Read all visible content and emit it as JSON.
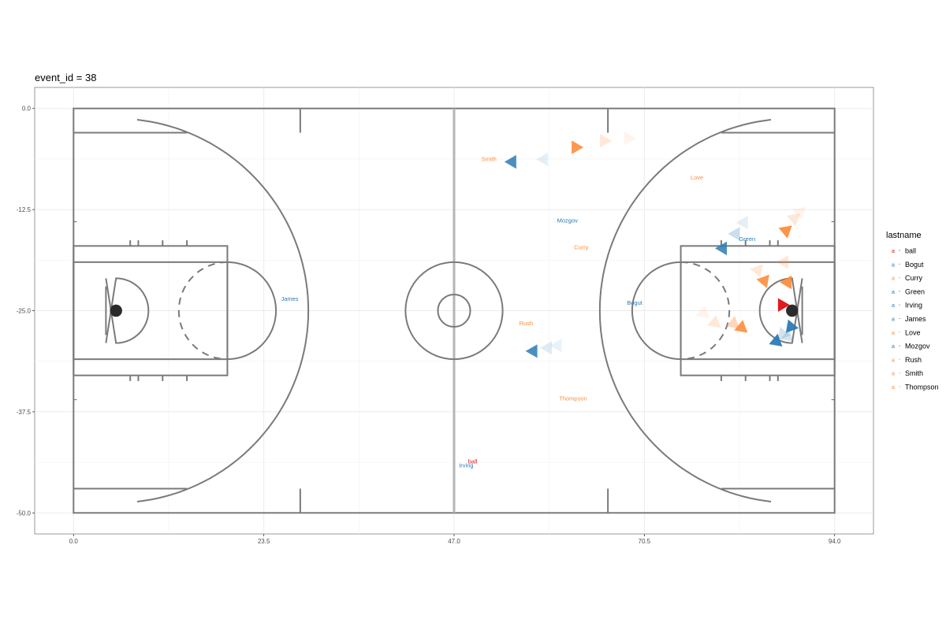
{
  "chart_data": {
    "type": "scatter",
    "title": "event_id = 38",
    "xlabel": "",
    "ylabel": "",
    "xlim": [
      -4.8,
      98.8
    ],
    "ylim": [
      -52.6,
      2.6
    ],
    "x_ticks": [
      0.0,
      23.5,
      47.0,
      70.5,
      94.0
    ],
    "x_tick_labels": [
      "0.0",
      "23.5",
      "47.0",
      "70.5",
      "94.0"
    ],
    "y_ticks": [
      0.0,
      -12.5,
      -25.0,
      -37.5,
      -50.0
    ],
    "y_tick_labels": [
      "0.0",
      "-12.5",
      "-25.0",
      "-37.5",
      "-50.0"
    ],
    "grid": true,
    "legend": {
      "title": "lastname",
      "placement": "right",
      "key_glyph": "a"
    },
    "series": [
      {
        "name": "ball",
        "color": "#e31a1c",
        "label_pos": [
          49.3,
          -43.6
        ],
        "markers": [
          {
            "x": 87.5,
            "y": -24.3,
            "a": 1.0,
            "r": 0
          }
        ]
      },
      {
        "name": "Bogut",
        "color": "#2c7bb6",
        "label_pos": [
          69.3,
          -24.0
        ],
        "markers": []
      },
      {
        "name": "Curry",
        "color": "#fd8d3c",
        "label_pos": [
          62.7,
          -17.1
        ],
        "markers": [
          {
            "x": 88.2,
            "y": -21.5,
            "a": 0.95,
            "r": 60
          },
          {
            "x": 87.8,
            "y": -19.0,
            "a": 0.2,
            "r": 60
          }
        ]
      },
      {
        "name": "Green",
        "color": "#2c7bb6",
        "label_pos": [
          83.2,
          -16.1
        ],
        "markers": [
          {
            "x": 80.2,
            "y": -17.3,
            "a": 0.85,
            "r": 180
          },
          {
            "x": 81.8,
            "y": -15.5,
            "a": 0.25,
            "r": 180
          },
          {
            "x": 82.8,
            "y": -14.1,
            "a": 0.12,
            "r": 180
          }
        ]
      },
      {
        "name": "Irving",
        "color": "#2c7bb6",
        "label_pos": [
          48.5,
          -44.1
        ],
        "markers": [
          {
            "x": 86.8,
            "y": -28.8,
            "a": 0.95,
            "r": 200
          },
          {
            "x": 88.2,
            "y": -28.2,
            "a": 0.2,
            "r": 200
          }
        ]
      },
      {
        "name": "James",
        "color": "#2c7bb6",
        "label_pos": [
          26.7,
          -23.5
        ],
        "markers": []
      },
      {
        "name": "Love",
        "color": "#fd8d3c",
        "label_pos": [
          77.0,
          -8.5
        ],
        "markers": [
          {
            "x": 85.3,
            "y": -21.3,
            "a": 0.9,
            "r": 170
          },
          {
            "x": 84.5,
            "y": -20.0,
            "a": 0.2,
            "r": 170
          }
        ]
      },
      {
        "name": "Mozgov",
        "color": "#2c7bb6",
        "label_pos": [
          61.0,
          -13.8
        ],
        "markers": [
          {
            "x": 88.6,
            "y": -27.0,
            "a": 0.95,
            "r": 230
          },
          {
            "x": 87.6,
            "y": -27.9,
            "a": 0.2,
            "r": 230
          }
        ]
      },
      {
        "name": "Rush",
        "color": "#fd8d3c",
        "label_pos": [
          55.9,
          -26.5
        ],
        "markers": [
          {
            "x": 82.5,
            "y": -27.1,
            "a": 0.9,
            "r": 200
          },
          {
            "x": 81.5,
            "y": -26.6,
            "a": 0.35,
            "r": 200
          },
          {
            "x": 79.2,
            "y": -26.5,
            "a": 0.2,
            "r": 200
          },
          {
            "x": 77.8,
            "y": -25.3,
            "a": 0.1,
            "r": 200
          }
        ]
      },
      {
        "name": "Smith",
        "color": "#fd8d3c",
        "label_pos": [
          51.3,
          -6.2
        ],
        "markers": [
          {
            "x": 62.0,
            "y": -4.8,
            "a": 0.9,
            "r": 0
          },
          {
            "x": 65.5,
            "y": -4.0,
            "a": 0.2,
            "r": 0
          },
          {
            "x": 68.5,
            "y": -3.7,
            "a": 0.1,
            "r": 0
          }
        ]
      },
      {
        "name": "Thompson",
        "color": "#fd8d3c",
        "label_pos": [
          61.7,
          -35.8
        ],
        "markers": [
          {
            "x": 88.0,
            "y": -15.1,
            "a": 0.95,
            "r": 40
          },
          {
            "x": 89.0,
            "y": -13.6,
            "a": 0.2,
            "r": 40
          },
          {
            "x": 89.7,
            "y": -12.8,
            "a": 0.1,
            "r": 40
          }
        ]
      },
      {
        "name": "Smith",
        "color": "#2c7bb6",
        "label_pos": null,
        "markers": [
          {
            "x": 54.2,
            "y": -6.6,
            "a": 0.85,
            "r": 180
          },
          {
            "x": 58.1,
            "y": -6.3,
            "a": 0.12,
            "r": 180
          }
        ]
      },
      {
        "name": "Rush",
        "color": "#2c7bb6",
        "label_pos": null,
        "markers": [
          {
            "x": 56.8,
            "y": -30.0,
            "a": 0.85,
            "r": 180
          },
          {
            "x": 58.6,
            "y": -29.6,
            "a": 0.15,
            "r": 180
          },
          {
            "x": 59.8,
            "y": -29.3,
            "a": 0.1,
            "r": 180
          }
        ]
      }
    ]
  }
}
